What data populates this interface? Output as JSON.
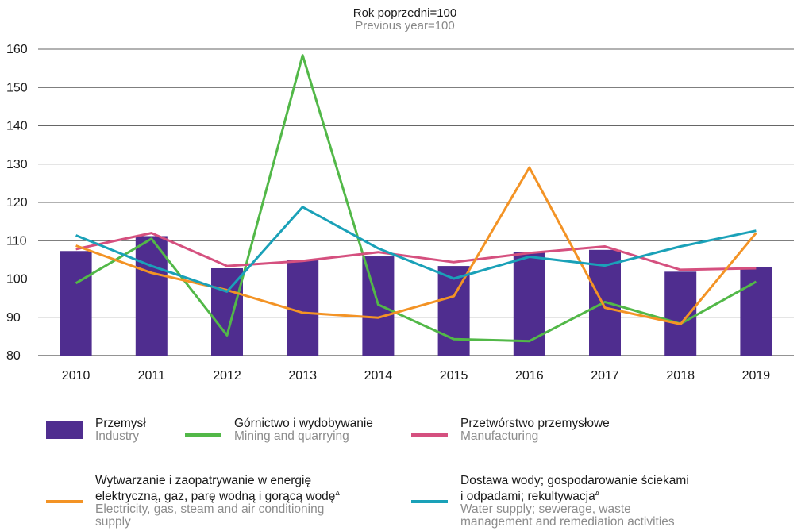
{
  "header": {
    "unit_pl": "Rok poprzedni=100",
    "unit_en": "Previous year=100"
  },
  "chart_data": {
    "type": "bar",
    "categories": [
      "2010",
      "2011",
      "2012",
      "2013",
      "2014",
      "2015",
      "2016",
      "2017",
      "2018",
      "2019"
    ],
    "ylim": [
      80,
      160
    ],
    "yticks": [
      80,
      90,
      100,
      110,
      120,
      130,
      140,
      150,
      160
    ],
    "grid": true,
    "legend_position": "bottom",
    "series": [
      {
        "key": "industry",
        "type": "bar",
        "color": "#4f2d8f",
        "values": [
          107.3,
          111.2,
          102.8,
          104.9,
          105.9,
          103.4,
          107.0,
          107.6,
          101.9,
          103.1
        ]
      },
      {
        "key": "mining",
        "type": "line",
        "color": "#52b848",
        "values": [
          98.9,
          110.5,
          85.3,
          158.4,
          93.3,
          84.3,
          83.8,
          94.0,
          88.3,
          99.3
        ]
      },
      {
        "key": "manufacturing",
        "type": "line",
        "color": "#d5507f",
        "values": [
          107.8,
          112.0,
          103.4,
          104.7,
          107.0,
          104.4,
          106.8,
          108.5,
          102.4,
          102.8
        ]
      },
      {
        "key": "electricity",
        "type": "line",
        "color": "#f39325",
        "values": [
          108.7,
          101.6,
          97.1,
          91.2,
          89.9,
          95.5,
          129.1,
          92.5,
          88.2,
          112.0
        ]
      },
      {
        "key": "water",
        "type": "line",
        "color": "#1aa1b8",
        "values": [
          111.4,
          103.4,
          96.7,
          118.8,
          108.0,
          100.1,
          105.8,
          103.5,
          108.5,
          112.6
        ]
      }
    ]
  },
  "legend": {
    "industry": {
      "pl": "Przemysł",
      "en": "Industry"
    },
    "mining": {
      "pl": "Górnictwo i wydobywanie",
      "en": "Mining and quarrying"
    },
    "manufacturing": {
      "pl": "Przetwórstwo przemysłowe",
      "en": "Manufacturing"
    },
    "electricity": {
      "pl1": "Wytwarzanie i zaopatrywanie w energię",
      "pl2": "elektryczną, gaz, parę wodną i gorącą wodę",
      "mark": "Δ",
      "en1": "Electricity, gas, steam and air conditioning",
      "en2": "supply"
    },
    "water": {
      "pl1": "Dostawa wody; gospodarowanie ściekami",
      "pl2": "i odpadami; rekultywacja",
      "mark": "Δ",
      "en1": "Water supply; sewerage, waste",
      "en2": "management and remediation activities"
    }
  }
}
